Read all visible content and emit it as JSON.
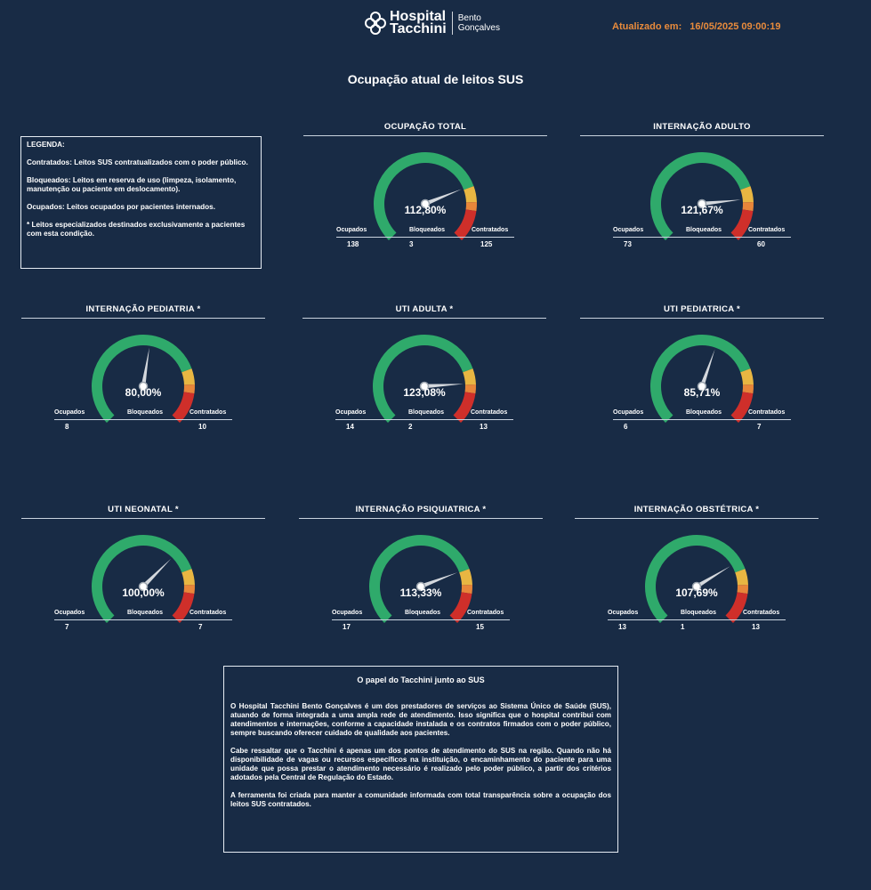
{
  "header": {
    "logo_name_line1": "Hospital",
    "logo_name_line2": "Tacchini",
    "logo_city_line1": "Bento",
    "logo_city_line2": "Gonçalves",
    "updated_label": "Atualizado em:",
    "updated_value": "16/05/2025 09:00:19"
  },
  "page_title": "Ocupação atual de leitos SUS",
  "legend": {
    "title": "LEGENDA:",
    "contratados": "Contratados: Leitos SUS contratualizados com o poder público.",
    "bloqueados": "Bloqueados: Leitos em reserva de uso (limpeza, isolamento, manutenção ou paciente em deslocamento).",
    "ocupados": "Ocupados: Leitos ocupados por pacientes internados.",
    "nota": "* Leitos especializados destinados exclusivamente a pacientes com esta condição."
  },
  "labels": {
    "ocupados": "Ocupados",
    "bloqueados": "Bloqueados",
    "contratados": "Contratados"
  },
  "colors": {
    "green": "#2faa6b",
    "yellow": "#e8b642",
    "orange": "#e8863a",
    "red": "#cf2f2a",
    "background": "#182b45"
  },
  "gauges": [
    {
      "title": "OCUPAÇÃO TOTAL",
      "percent_label": "112,80%",
      "percent": 112.8,
      "ocupados": "138",
      "bloqueados": "3",
      "contratados": "125"
    },
    {
      "title": "INTERNAÇÃO ADULTO",
      "percent_label": "121,67%",
      "percent": 121.67,
      "ocupados": "73",
      "bloqueados": "",
      "contratados": "60"
    },
    {
      "title": "INTERNAÇÃO PEDIATRIA *",
      "percent_label": "80,00%",
      "percent": 80.0,
      "ocupados": "8",
      "bloqueados": "",
      "contratados": "10"
    },
    {
      "title": "UTI ADULTA *",
      "percent_label": "123,08%",
      "percent": 123.08,
      "ocupados": "14",
      "bloqueados": "2",
      "contratados": "13"
    },
    {
      "title": "UTI PEDIATRICA *",
      "percent_label": "85,71%",
      "percent": 85.71,
      "ocupados": "6",
      "bloqueados": "",
      "contratados": "7"
    },
    {
      "title": "UTI NEONATAL *",
      "percent_label": "100,00%",
      "percent": 100.0,
      "ocupados": "7",
      "bloqueados": "",
      "contratados": "7"
    },
    {
      "title": "INTERNAÇÃO PSIQUIATRICA *",
      "percent_label": "113,33%",
      "percent": 113.33,
      "ocupados": "17",
      "bloqueados": "",
      "contratados": "15"
    },
    {
      "title": "INTERNAÇÃO OBSTÉTRICA *",
      "percent_label": "107,69%",
      "percent": 107.69,
      "ocupados": "13",
      "bloqueados": "1",
      "contratados": "13"
    }
  ],
  "info": {
    "title": "O papel do Tacchini junto ao SUS",
    "p1": "O Hospital Tacchini Bento Gonçalves é um dos prestadores de serviços ao Sistema Único de Saúde (SUS), atuando de forma integrada a uma ampla rede de atendimento. Isso significa que o hospital contribui com atendimentos e internações, conforme a capacidade instalada e os contratos firmados com o poder público, sempre buscando oferecer cuidado de qualidade aos pacientes.",
    "p2": "Cabe ressaltar que o Tacchini é apenas um dos pontos de atendimento do SUS na região. Quando não há disponibilidade de vagas ou recursos específicos na instituição, o encaminhamento do paciente para uma unidade que possa prestar o atendimento necessário é realizado pelo poder público, a partir dos critérios adotados pela Central de Regulação do Estado.",
    "p3": "A ferramenta foi criada para manter a comunidade informada com total transparência sobre a ocupação dos leitos SUS contratados."
  }
}
